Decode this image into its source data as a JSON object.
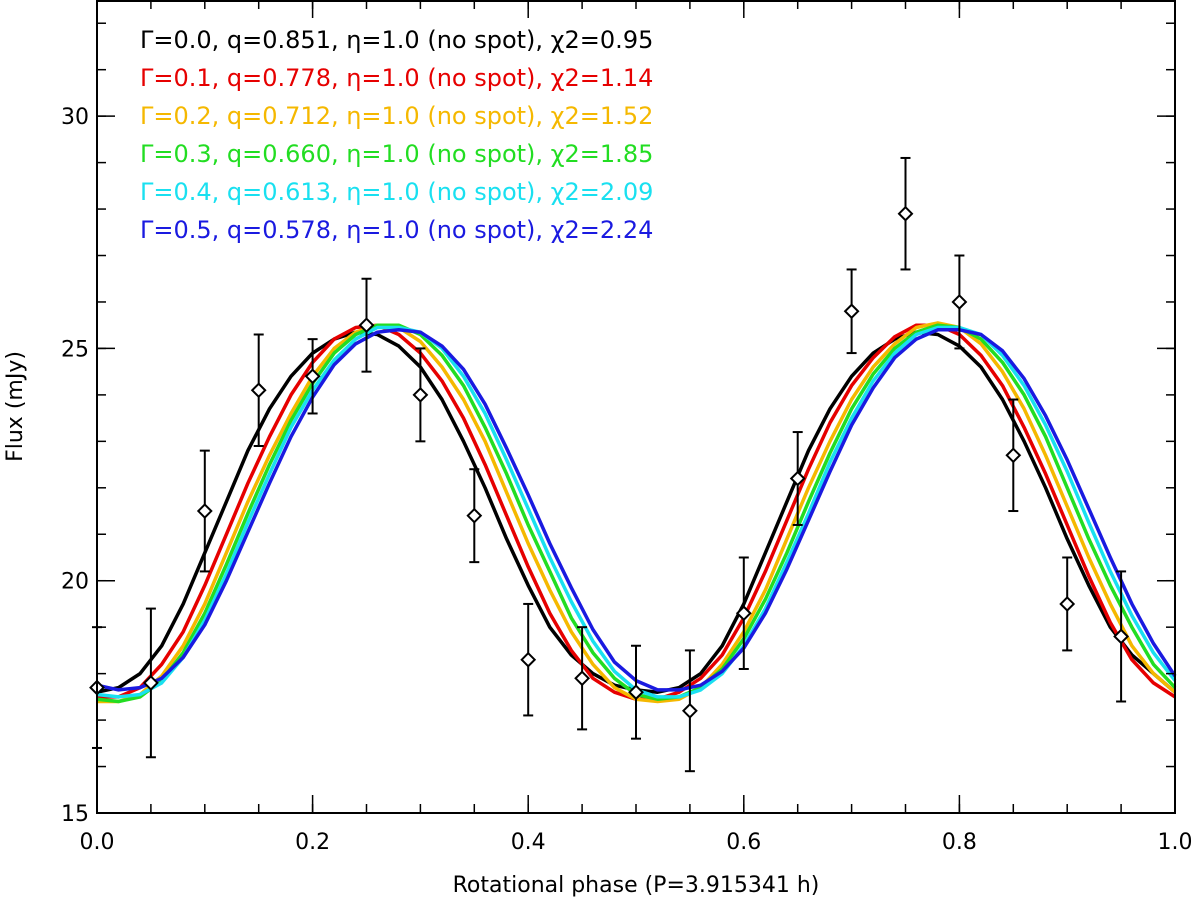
{
  "chart_data": {
    "type": "line",
    "xlabel": "Rotational phase (P=3.915341 h)",
    "ylabel": "Flux (mJy)",
    "xlim": [
      0.0,
      1.0
    ],
    "ylim": [
      15,
      32.5
    ],
    "x_major_ticks": [
      0.0,
      0.2,
      0.4,
      0.6,
      0.8,
      1.0
    ],
    "x_tick_labels": [
      "0.0",
      "0.2",
      "0.4",
      "0.6",
      "0.8",
      "1.0"
    ],
    "x_minor_step": 0.05,
    "y_major_ticks": [
      15,
      20,
      25,
      30
    ],
    "y_tick_labels": [
      "15",
      "20",
      "25",
      "30"
    ],
    "y_minor_step": 1,
    "legend_position": "top-left",
    "series": [
      {
        "name": "Γ=0.0, q=0.851, η=1.0 (no spot), χ2=0.95",
        "color": "#000000",
        "x": [
          0.0,
          0.02,
          0.04,
          0.06,
          0.08,
          0.1,
          0.12,
          0.14,
          0.16,
          0.18,
          0.2,
          0.22,
          0.24,
          0.26,
          0.28,
          0.3,
          0.32,
          0.34,
          0.36,
          0.38,
          0.4,
          0.42,
          0.44,
          0.46,
          0.48,
          0.5,
          0.52,
          0.54,
          0.56,
          0.58,
          0.6,
          0.62,
          0.64,
          0.66,
          0.68,
          0.7,
          0.72,
          0.74,
          0.76,
          0.78,
          0.8,
          0.82,
          0.84,
          0.86,
          0.88,
          0.9,
          0.92,
          0.94,
          0.96,
          0.98,
          1.0
        ],
        "y": [
          17.6,
          17.7,
          18.0,
          18.6,
          19.5,
          20.6,
          21.7,
          22.8,
          23.7,
          24.4,
          24.9,
          25.2,
          25.35,
          25.3,
          25.05,
          24.6,
          23.9,
          23.0,
          22.0,
          20.9,
          19.9,
          19.0,
          18.4,
          18.0,
          17.75,
          17.65,
          17.6,
          17.7,
          18.0,
          18.6,
          19.5,
          20.6,
          21.7,
          22.8,
          23.7,
          24.4,
          24.9,
          25.2,
          25.35,
          25.3,
          25.05,
          24.6,
          23.9,
          23.0,
          22.0,
          20.9,
          19.9,
          19.0,
          18.4,
          18.0,
          17.6
        ]
      },
      {
        "name": "Γ=0.1, q=0.778, η=1.0 (no spot), χ2=1.14",
        "color": "#e60000",
        "x": [
          0.0,
          0.02,
          0.04,
          0.06,
          0.08,
          0.1,
          0.12,
          0.14,
          0.16,
          0.18,
          0.2,
          0.22,
          0.24,
          0.26,
          0.28,
          0.3,
          0.32,
          0.34,
          0.36,
          0.38,
          0.4,
          0.42,
          0.44,
          0.46,
          0.48,
          0.5,
          0.52,
          0.54,
          0.56,
          0.58,
          0.6,
          0.62,
          0.64,
          0.66,
          0.68,
          0.7,
          0.72,
          0.74,
          0.76,
          0.78,
          0.8,
          0.82,
          0.84,
          0.86,
          0.88,
          0.9,
          0.92,
          0.94,
          0.96,
          0.98,
          1.0
        ],
        "y": [
          17.5,
          17.5,
          17.7,
          18.2,
          18.9,
          19.9,
          21.0,
          22.1,
          23.1,
          24.0,
          24.7,
          25.2,
          25.45,
          25.5,
          25.3,
          24.9,
          24.3,
          23.5,
          22.5,
          21.4,
          20.3,
          19.3,
          18.5,
          17.9,
          17.6,
          17.45,
          17.45,
          17.6,
          17.9,
          18.4,
          19.2,
          20.2,
          21.3,
          22.4,
          23.4,
          24.2,
          24.8,
          25.25,
          25.5,
          25.5,
          25.3,
          24.85,
          24.2,
          23.3,
          22.3,
          21.2,
          20.1,
          19.1,
          18.3,
          17.8,
          17.5
        ]
      },
      {
        "name": "Γ=0.2, q=0.712, η=1.0 (no spot), χ2=1.52",
        "color": "#f5b800",
        "x": [
          0.0,
          0.02,
          0.04,
          0.06,
          0.08,
          0.1,
          0.12,
          0.14,
          0.16,
          0.18,
          0.2,
          0.22,
          0.24,
          0.26,
          0.28,
          0.3,
          0.32,
          0.34,
          0.36,
          0.38,
          0.4,
          0.42,
          0.44,
          0.46,
          0.48,
          0.5,
          0.52,
          0.54,
          0.56,
          0.58,
          0.6,
          0.62,
          0.64,
          0.66,
          0.68,
          0.7,
          0.72,
          0.74,
          0.76,
          0.78,
          0.8,
          0.82,
          0.84,
          0.86,
          0.88,
          0.9,
          0.92,
          0.94,
          0.96,
          0.98,
          1.0
        ],
        "y": [
          17.4,
          17.4,
          17.55,
          17.95,
          18.6,
          19.5,
          20.6,
          21.7,
          22.7,
          23.6,
          24.4,
          25.0,
          25.35,
          25.5,
          25.45,
          25.15,
          24.6,
          23.9,
          23.0,
          21.9,
          20.8,
          19.8,
          18.9,
          18.2,
          17.7,
          17.45,
          17.4,
          17.45,
          17.7,
          18.2,
          18.9,
          19.8,
          20.9,
          22.0,
          23.0,
          23.9,
          24.6,
          25.1,
          25.45,
          25.55,
          25.45,
          25.1,
          24.5,
          23.7,
          22.7,
          21.6,
          20.5,
          19.5,
          18.6,
          18.0,
          17.6
        ]
      },
      {
        "name": "Γ=0.3, q=0.660, η=1.0 (no spot), χ2=1.85",
        "color": "#22dd22",
        "x": [
          0.0,
          0.02,
          0.04,
          0.06,
          0.08,
          0.1,
          0.12,
          0.14,
          0.16,
          0.18,
          0.2,
          0.22,
          0.24,
          0.26,
          0.28,
          0.3,
          0.32,
          0.34,
          0.36,
          0.38,
          0.4,
          0.42,
          0.44,
          0.46,
          0.48,
          0.5,
          0.52,
          0.54,
          0.56,
          0.58,
          0.6,
          0.62,
          0.64,
          0.66,
          0.68,
          0.7,
          0.72,
          0.74,
          0.76,
          0.78,
          0.8,
          0.82,
          0.84,
          0.86,
          0.88,
          0.9,
          0.92,
          0.94,
          0.96,
          0.98,
          1.0
        ],
        "y": [
          17.45,
          17.4,
          17.5,
          17.85,
          18.45,
          19.3,
          20.35,
          21.45,
          22.5,
          23.45,
          24.25,
          24.9,
          25.3,
          25.5,
          25.5,
          25.3,
          24.85,
          24.2,
          23.3,
          22.3,
          21.2,
          20.2,
          19.2,
          18.45,
          17.9,
          17.55,
          17.45,
          17.5,
          17.7,
          18.1,
          18.75,
          19.6,
          20.6,
          21.7,
          22.75,
          23.7,
          24.45,
          25.0,
          25.35,
          25.5,
          25.45,
          25.2,
          24.7,
          24.0,
          23.1,
          22.0,
          20.9,
          19.9,
          19.0,
          18.2,
          17.7
        ]
      },
      {
        "name": "Γ=0.4, q=0.613, η=1.0 (no spot), χ2=2.09",
        "color": "#19e0f0",
        "x": [
          0.0,
          0.02,
          0.04,
          0.06,
          0.08,
          0.1,
          0.12,
          0.14,
          0.16,
          0.18,
          0.2,
          0.22,
          0.24,
          0.26,
          0.28,
          0.3,
          0.32,
          0.34,
          0.36,
          0.38,
          0.4,
          0.42,
          0.44,
          0.46,
          0.48,
          0.5,
          0.52,
          0.54,
          0.56,
          0.58,
          0.6,
          0.62,
          0.64,
          0.66,
          0.68,
          0.7,
          0.72,
          0.74,
          0.76,
          0.78,
          0.8,
          0.82,
          0.84,
          0.86,
          0.88,
          0.9,
          0.92,
          0.94,
          0.96,
          0.98,
          1.0
        ],
        "y": [
          17.55,
          17.5,
          17.55,
          17.8,
          18.35,
          19.15,
          20.15,
          21.25,
          22.3,
          23.3,
          24.1,
          24.75,
          25.2,
          25.45,
          25.45,
          25.35,
          25.0,
          24.4,
          23.6,
          22.6,
          21.55,
          20.5,
          19.55,
          18.7,
          18.05,
          17.65,
          17.5,
          17.5,
          17.65,
          18.0,
          18.6,
          19.4,
          20.4,
          21.45,
          22.55,
          23.5,
          24.3,
          24.9,
          25.3,
          25.45,
          25.45,
          25.3,
          24.85,
          24.2,
          23.35,
          22.35,
          21.25,
          20.2,
          19.25,
          18.45,
          17.85
        ]
      },
      {
        "name": "Γ=0.5, q=0.578, η=1.0 (no spot), χ2=2.24",
        "color": "#1a1ae0",
        "x": [
          0.0,
          0.02,
          0.04,
          0.06,
          0.08,
          0.1,
          0.12,
          0.14,
          0.16,
          0.18,
          0.2,
          0.22,
          0.24,
          0.26,
          0.28,
          0.3,
          0.32,
          0.34,
          0.36,
          0.38,
          0.4,
          0.42,
          0.44,
          0.46,
          0.48,
          0.5,
          0.52,
          0.54,
          0.56,
          0.58,
          0.6,
          0.62,
          0.64,
          0.66,
          0.68,
          0.7,
          0.72,
          0.74,
          0.76,
          0.78,
          0.8,
          0.82,
          0.84,
          0.86,
          0.88,
          0.9,
          0.92,
          0.94,
          0.96,
          0.98,
          1.0
        ],
        "y": [
          17.75,
          17.65,
          17.7,
          17.9,
          18.35,
          19.05,
          20.0,
          21.05,
          22.1,
          23.1,
          23.95,
          24.65,
          25.1,
          25.35,
          25.4,
          25.35,
          25.05,
          24.55,
          23.8,
          22.85,
          21.85,
          20.8,
          19.85,
          18.95,
          18.25,
          17.85,
          17.65,
          17.65,
          17.75,
          18.05,
          18.55,
          19.3,
          20.25,
          21.3,
          22.35,
          23.35,
          24.15,
          24.8,
          25.2,
          25.4,
          25.4,
          25.3,
          24.95,
          24.35,
          23.55,
          22.6,
          21.55,
          20.5,
          19.5,
          18.65,
          17.95
        ]
      }
    ],
    "observations": {
      "name": "data",
      "marker": "diamond",
      "x": [
        0.0,
        0.05,
        0.1,
        0.15,
        0.2,
        0.25,
        0.3,
        0.35,
        0.4,
        0.45,
        0.5,
        0.55,
        0.6,
        0.65,
        0.7,
        0.75,
        0.8,
        0.85,
        0.9,
        0.95
      ],
      "y": [
        17.7,
        17.8,
        21.5,
        24.1,
        24.4,
        25.5,
        24.0,
        21.4,
        18.3,
        17.9,
        17.6,
        17.2,
        19.3,
        22.2,
        25.8,
        27.9,
        26.0,
        22.7,
        19.5,
        18.8
      ],
      "yerr": [
        1.3,
        1.6,
        1.3,
        1.2,
        0.8,
        1.0,
        1.0,
        1.0,
        1.2,
        1.1,
        1.0,
        1.3,
        1.2,
        1.0,
        0.9,
        1.2,
        1.0,
        1.2,
        1.0,
        1.4
      ]
    }
  }
}
